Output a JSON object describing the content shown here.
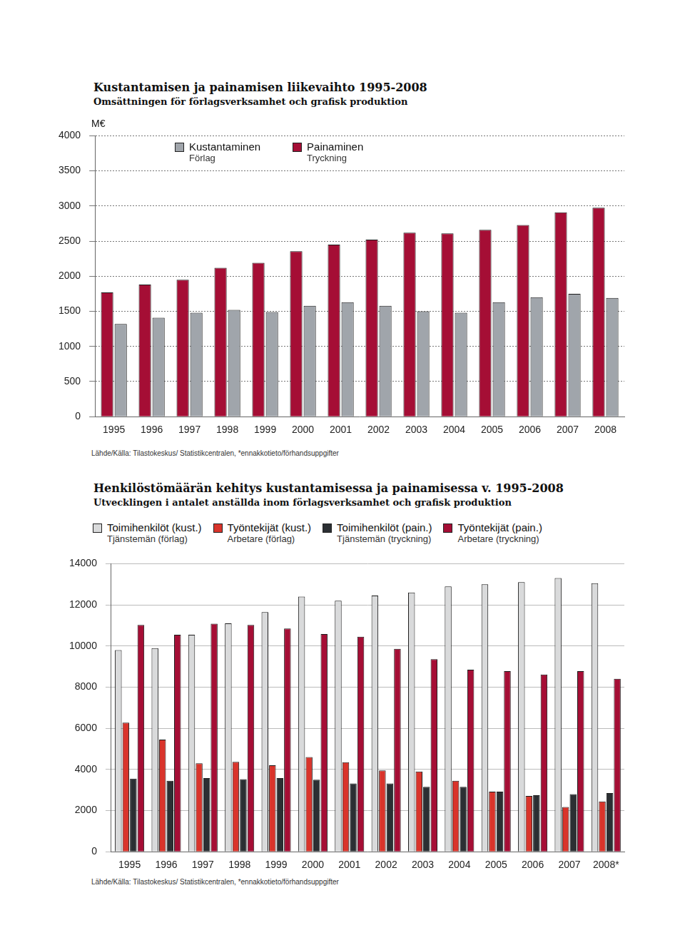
{
  "chart_data": [
    {
      "type": "bar",
      "title": "Kustantamisen ja painamisen liikevaihto 1995-2008",
      "subtitle": "Omsättningen för förlagsverksamhet och grafisk produktion",
      "y_label": "M€",
      "source": "Lähde/Källa: Tilastokeskus/ Statistikcentralen, *ennakkotieto/förhandsuppgifter",
      "categories": [
        "1995",
        "1996",
        "1997",
        "1998",
        "1999",
        "2000",
        "2001",
        "2002",
        "2003",
        "2004",
        "2005",
        "2006",
        "2007",
        "2008"
      ],
      "series": [
        {
          "name": "Kustantaminen",
          "name_sv": "Förlag",
          "color": "#a0a5ab",
          "values": [
            1320,
            1410,
            1480,
            1520,
            1490,
            1580,
            1630,
            1580,
            1500,
            1480,
            1630,
            1700,
            1750,
            1690
          ]
        },
        {
          "name": "Painaminen",
          "name_sv": "Tryckning",
          "color": "#a50e35",
          "values": [
            1770,
            1880,
            1950,
            2120,
            2190,
            2355,
            2450,
            2520,
            2620,
            2610,
            2660,
            2730,
            2910,
            2975
          ]
        }
      ],
      "ylim": [
        0,
        4000
      ],
      "yticks": [
        0,
        500,
        1000,
        1500,
        2000,
        2500,
        3000,
        3500,
        4000
      ],
      "grid": true,
      "legend": "top"
    },
    {
      "type": "bar",
      "title": "Henkilöstömäärän kehitys kustantamisessa ja painamisessa v. 1995-2008",
      "subtitle": "Utvecklingen i antalet anställda inom förlagsverksamhet och grafisk produktion",
      "source": "Lähde/Källa: Tilastokeskus/ Statistikcentralen, *ennakkotieto/förhandsuppgifter",
      "categories": [
        "1995",
        "1996",
        "1997",
        "1998",
        "1999",
        "2000",
        "2001",
        "2002",
        "2003",
        "2004",
        "2005",
        "2006",
        "2007",
        "2008*"
      ],
      "series": [
        {
          "name": "Toimihenkilöt (kust.)",
          "name_sv": "Tjänstemän (förlag)",
          "color": "#d9dadb",
          "values": [
            9800,
            9900,
            10550,
            11100,
            11650,
            12400,
            12200,
            12450,
            12600,
            12900,
            13000,
            13100,
            13300,
            13050
          ]
        },
        {
          "name": "Työntekijät (kust.)",
          "name_sv": "Arbetare (förlag)",
          "color": "#d9342b",
          "values": [
            6270,
            5450,
            4300,
            4370,
            4200,
            4600,
            4350,
            3950,
            3900,
            3450,
            2920,
            2710,
            2170,
            2440
          ]
        },
        {
          "name": "Toimihenkilöt (pain.)",
          "name_sv": "Tjänstemän (tryckning)",
          "color": "#2b2f33",
          "values": [
            3550,
            3450,
            3580,
            3530,
            3580,
            3500,
            3320,
            3320,
            3150,
            3150,
            2920,
            2750,
            2800,
            2850
          ]
        },
        {
          "name": "Työntekijät (pain.)",
          "name_sv": "Arbetare (tryckning)",
          "color": "#a50e35",
          "values": [
            11020,
            10550,
            11080,
            11020,
            10850,
            10580,
            10450,
            9860,
            9360,
            8850,
            8780,
            8610,
            8780,
            8410
          ]
        }
      ],
      "ylim": [
        0,
        14000
      ],
      "yticks": [
        0,
        2000,
        4000,
        6000,
        8000,
        10000,
        12000,
        14000
      ],
      "grid": true,
      "legend": "top"
    }
  ]
}
